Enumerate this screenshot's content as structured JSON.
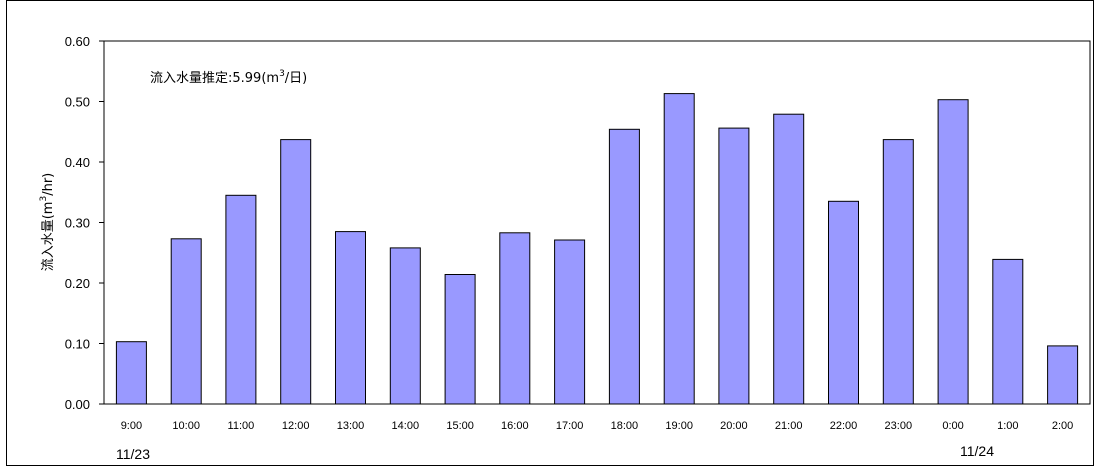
{
  "chart_data": {
    "type": "bar",
    "categories": [
      "9:00",
      "10:00",
      "11:00",
      "12:00",
      "13:00",
      "14:00",
      "15:00",
      "16:00",
      "17:00",
      "18:00",
      "19:00",
      "20:00",
      "21:00",
      "22:00",
      "23:00",
      "0:00",
      "1:00",
      "2:00"
    ],
    "values": [
      0.103,
      0.273,
      0.345,
      0.437,
      0.285,
      0.258,
      0.214,
      0.283,
      0.271,
      0.454,
      0.513,
      0.456,
      0.479,
      0.335,
      0.437,
      0.503,
      0.239,
      0.096
    ],
    "ylim": [
      0,
      0.6
    ],
    "yticks": [
      "0.00",
      "0.10",
      "0.20",
      "0.30",
      "0.40",
      "0.50",
      "0.60"
    ],
    "ylabel_main": "流入水量",
    "ylabel_unit": "(m",
    "ylabel_sup": "3",
    "ylabel_tail": "/hr)",
    "annotation_main": "流入水量推定:5.99(m",
    "annotation_sup": "3",
    "annotation_tail": "/日)",
    "date_labels": [
      "11/23",
      "11/24"
    ],
    "bar_color": "#9999ff",
    "grid": false,
    "legend": "none"
  }
}
